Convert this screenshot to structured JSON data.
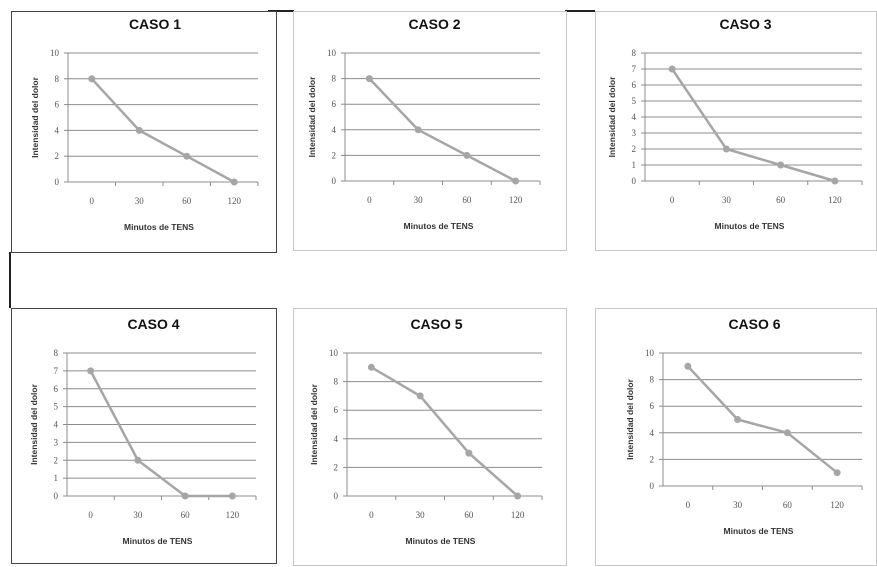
{
  "chart_data": [
    {
      "type": "line",
      "title": "CASO 1",
      "xlabel": "Minutos de TENS",
      "ylabel": "Intensidad del dolor",
      "categories": [
        "0",
        "30",
        "60",
        "120"
      ],
      "values": [
        8,
        4,
        2,
        0
      ],
      "ylim": [
        0,
        10
      ],
      "yticks": [
        0,
        2,
        4,
        6,
        8,
        10
      ],
      "grid": true
    },
    {
      "type": "line",
      "title": "CASO 2",
      "xlabel": "Minutos de TENS",
      "ylabel": "Intensidad del dolor",
      "categories": [
        "0",
        "30",
        "60",
        "120"
      ],
      "values": [
        8,
        4,
        2,
        0
      ],
      "ylim": [
        0,
        10
      ],
      "yticks": [
        0,
        2,
        4,
        6,
        8,
        10
      ],
      "grid": true
    },
    {
      "type": "line",
      "title": "CASO 3",
      "xlabel": "Minutos de TENS",
      "ylabel": "Intensidad del dolor",
      "categories": [
        "0",
        "30",
        "60",
        "120"
      ],
      "values": [
        7,
        2,
        1,
        0
      ],
      "ylim": [
        0,
        8
      ],
      "yticks": [
        0,
        1,
        2,
        3,
        4,
        5,
        6,
        7,
        8
      ],
      "grid": true
    },
    {
      "type": "line",
      "title": "CASO 4",
      "xlabel": "Minutos de TENS",
      "ylabel": "Intensidad del dolor",
      "categories": [
        "0",
        "30",
        "60",
        "120"
      ],
      "values": [
        7,
        2,
        0,
        0
      ],
      "ylim": [
        0,
        8
      ],
      "yticks": [
        0,
        1,
        2,
        3,
        4,
        5,
        6,
        7,
        8
      ],
      "grid": true
    },
    {
      "type": "line",
      "title": "CASO 5",
      "xlabel": "Minutos de TENS",
      "ylabel": "Intensidad del dolor",
      "categories": [
        "0",
        "30",
        "60",
        "120"
      ],
      "values": [
        9,
        7,
        3,
        0
      ],
      "ylim": [
        0,
        10
      ],
      "yticks": [
        0,
        2,
        4,
        6,
        8,
        10
      ],
      "grid": true
    },
    {
      "type": "line",
      "title": "CASO 6",
      "xlabel": "Minutos de TENS",
      "ylabel": "Intensidad del dolor",
      "categories": [
        "0",
        "30",
        "60",
        "120"
      ],
      "values": [
        9,
        5,
        4,
        1
      ],
      "ylim": [
        0,
        10
      ],
      "yticks": [
        0,
        2,
        4,
        6,
        8,
        10
      ],
      "grid": true
    }
  ]
}
